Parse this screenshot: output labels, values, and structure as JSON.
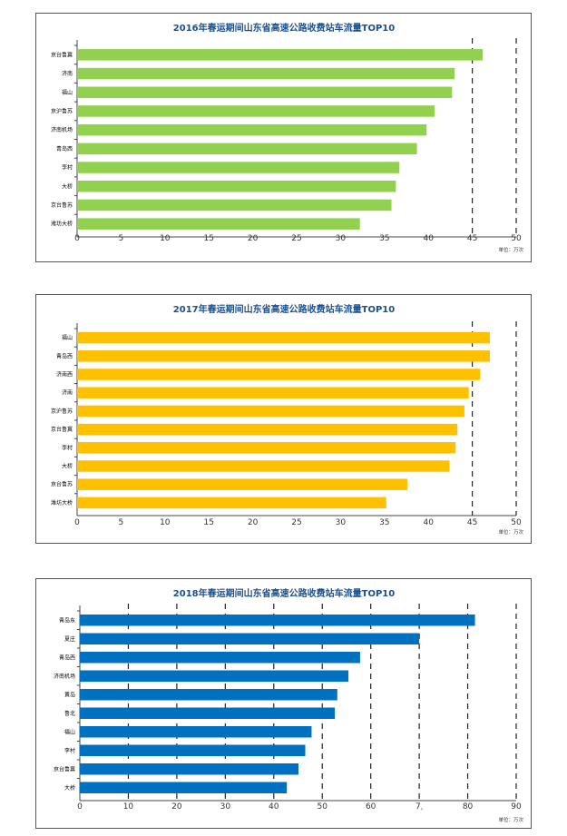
{
  "chart_data": [
    {
      "type": "bar",
      "orientation": "horizontal",
      "title": "2016年春运期间山东省高速公路收费站车流量TOP10",
      "unit": "单位：万次",
      "color": "#92d050",
      "categories": [
        "京台鲁冀",
        "济南",
        "福山",
        "京沪鲁苏",
        "济南机场",
        "青岛西",
        "李村",
        "大桥",
        "京台鲁苏",
        "潍坊大桥"
      ],
      "values": [
        46.2,
        43.0,
        42.7,
        40.7,
        39.8,
        38.7,
        36.7,
        36.3,
        35.8,
        32.2
      ],
      "xlim": [
        0,
        50
      ],
      "xticks": [
        0,
        5,
        10,
        15,
        20,
        25,
        30,
        35,
        40,
        45,
        50
      ],
      "grid_lines": [
        45,
        50
      ],
      "grid": "dashed vertical"
    },
    {
      "type": "bar",
      "orientation": "horizontal",
      "title": "2017年春运期间山东省高速公路收费站车流量TOP10",
      "unit": "单位：万次",
      "color": "#ffc000",
      "categories": [
        "福山",
        "青岛西",
        "济南西",
        "济南",
        "京沪鲁苏",
        "京台鲁冀",
        "李村",
        "大桥",
        "京台鲁苏",
        "潍坊大桥"
      ],
      "values": [
        47.0,
        47.0,
        45.9,
        44.6,
        44.1,
        43.3,
        43.1,
        42.4,
        37.6,
        35.2
      ],
      "xlim": [
        0,
        50
      ],
      "xticks": [
        0,
        5,
        10,
        15,
        20,
        25,
        30,
        35,
        40,
        45,
        50
      ],
      "grid_lines": [
        45,
        50
      ],
      "grid": "dashed vertical"
    },
    {
      "type": "bar",
      "orientation": "horizontal",
      "title": "2018年春运期间山东省高速公路收费站车流量TOP10",
      "unit": "单位：万次",
      "color": "#0070c0",
      "categories": [
        "青岛东",
        "夏庄",
        "青岛西",
        "济南机场",
        "黄岛",
        "鲁北",
        "福山",
        "李村",
        "京台鲁冀",
        "大桥"
      ],
      "values": [
        81.5,
        70.0,
        57.8,
        55.4,
        53.1,
        52.6,
        47.8,
        46.5,
        45.1,
        42.7
      ],
      "xlim": [
        0,
        90
      ],
      "xticks": [
        0,
        10,
        20,
        30,
        40,
        50,
        60,
        70,
        80,
        90
      ],
      "xtick_labels": [
        "0",
        "10",
        "20",
        "30",
        "40",
        "50",
        "60",
        "7ˌ",
        "80",
        "90"
      ],
      "grid_lines": [
        10,
        20,
        30,
        40,
        50,
        60,
        70,
        80,
        90
      ],
      "grid": "dashed vertical"
    }
  ]
}
